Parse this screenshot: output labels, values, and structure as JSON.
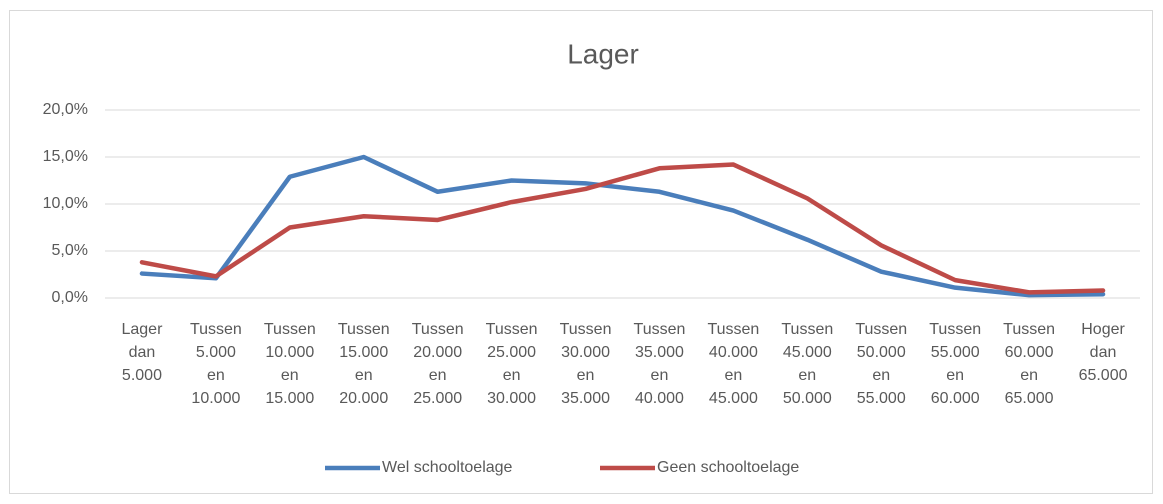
{
  "chart_data": {
    "type": "line",
    "title": "Lager",
    "categories": [
      "Lager dan 5.000",
      "Tussen 5.000 en 10.000",
      "Tussen 10.000 en 15.000",
      "Tussen 15.000 en 20.000",
      "Tussen 20.000 en 25.000",
      "Tussen 25.000 en 30.000",
      "Tussen 30.000 en 35.000",
      "Tussen 35.000 en 40.000",
      "Tussen 40.000 en 45.000",
      "Tussen 45.000 en 50.000",
      "Tussen 50.000 en 55.000",
      "Tussen 55.000 en 60.000",
      "Tussen 60.000 en 65.000",
      "Hoger dan 65.000"
    ],
    "series": [
      {
        "name": "Wel schooltoelage",
        "color": "#4a7ebb",
        "values": [
          2.6,
          2.1,
          12.9,
          15.0,
          11.3,
          12.5,
          12.2,
          11.3,
          9.3,
          6.2,
          2.8,
          1.1,
          0.3,
          0.4
        ]
      },
      {
        "name": "Geen schooltoelage",
        "color": "#be4b48",
        "values": [
          3.8,
          2.3,
          7.5,
          8.7,
          8.3,
          10.2,
          11.6,
          13.8,
          14.2,
          10.6,
          5.6,
          1.9,
          0.6,
          0.8
        ]
      }
    ],
    "ylim": [
      0,
      20
    ],
    "yticks": [
      {
        "value": 0,
        "label": "0,0%"
      },
      {
        "value": 5,
        "label": "5,0%"
      },
      {
        "value": 10,
        "label": "10,0%"
      },
      {
        "value": 15,
        "label": "15,0%"
      },
      {
        "value": 20,
        "label": "20,0%"
      }
    ],
    "grid": true,
    "legend": "bottom"
  }
}
